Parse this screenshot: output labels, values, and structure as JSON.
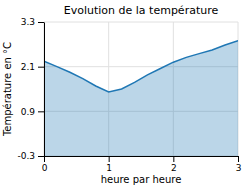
{
  "chart_data": {
    "type": "area",
    "title": "Evolution de la température",
    "xlabel": "heure par heure",
    "ylabel": "Température en °C",
    "x": [
      0,
      0.2,
      0.4,
      0.6,
      0.8,
      1.0,
      1.2,
      1.4,
      1.6,
      1.8,
      2.0,
      2.2,
      2.4,
      2.6,
      2.8,
      3.0
    ],
    "values": [
      2.25,
      2.1,
      1.95,
      1.78,
      1.58,
      1.42,
      1.5,
      1.68,
      1.88,
      2.05,
      2.22,
      2.35,
      2.45,
      2.55,
      2.68,
      2.8
    ],
    "xlim": [
      0,
      3
    ],
    "ylim": [
      -0.3,
      3.3
    ],
    "xticks": [
      0,
      1,
      2,
      3
    ],
    "yticks": [
      -0.3,
      0.9,
      2.1,
      3.3
    ],
    "grid": true
  }
}
